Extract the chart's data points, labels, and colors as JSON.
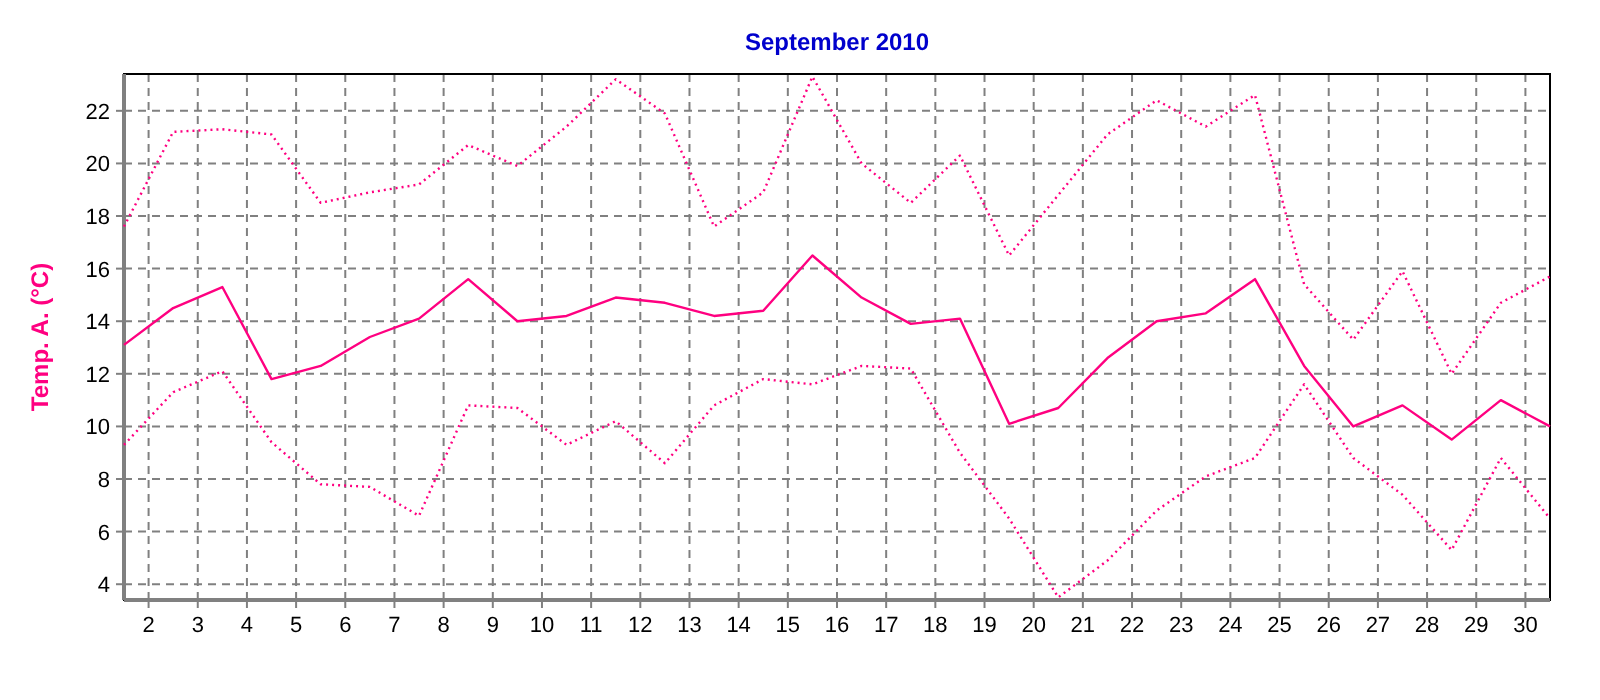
{
  "chart_data": {
    "type": "line",
    "title": "September 2010",
    "ylabel": "Temp. A. (°C)",
    "x": [
      1.5,
      2.5,
      3.5,
      4.5,
      5.5,
      6.5,
      7.5,
      8.5,
      9.5,
      10.5,
      11.5,
      12.5,
      13.5,
      14.5,
      15.5,
      16.5,
      17.5,
      18.5,
      19.5,
      20.5,
      21.5,
      22.5,
      23.5,
      24.5,
      25.5,
      26.5,
      27.5,
      28.5,
      29.5,
      30.5
    ],
    "xlim": [
      1.5,
      30.5
    ],
    "xticks": [
      2,
      3,
      4,
      5,
      6,
      7,
      8,
      9,
      10,
      11,
      12,
      13,
      14,
      15,
      16,
      17,
      18,
      19,
      20,
      21,
      22,
      23,
      24,
      25,
      26,
      27,
      28,
      29,
      30
    ],
    "ylim": [
      3.4,
      23.4
    ],
    "yticks": [
      4,
      6,
      8,
      10,
      12,
      14,
      16,
      18,
      20,
      22
    ],
    "grid": true,
    "series": [
      {
        "color": "#ff0080",
        "line_style": "dotted",
        "values": [
          17.6,
          21.2,
          21.3,
          21.1,
          18.5,
          18.9,
          19.2,
          20.7,
          19.9,
          21.4,
          23.2,
          21.9,
          17.6,
          18.9,
          23.3,
          20.0,
          18.5,
          20.3,
          16.5,
          18.8,
          21.1,
          22.4,
          21.4,
          22.6,
          15.4,
          13.3,
          15.9,
          12.0,
          14.7,
          15.7
        ]
      },
      {
        "color": "#ff0080",
        "line_style": "solid",
        "values": [
          13.1,
          14.5,
          15.3,
          11.8,
          12.3,
          13.4,
          14.1,
          15.6,
          14.0,
          14.2,
          14.9,
          14.7,
          14.2,
          14.4,
          16.5,
          14.9,
          13.9,
          14.1,
          10.1,
          10.7,
          12.6,
          14.0,
          14.3,
          15.6,
          12.3,
          10.0,
          10.8,
          9.5,
          11.0,
          10.0
        ]
      },
      {
        "color": "#ff0080",
        "line_style": "dotted",
        "values": [
          9.3,
          11.3,
          12.1,
          9.4,
          7.8,
          7.7,
          6.6,
          10.8,
          10.7,
          9.3,
          10.2,
          8.6,
          10.8,
          11.8,
          11.6,
          12.3,
          12.2,
          9.0,
          6.5,
          3.5,
          4.9,
          6.8,
          8.1,
          8.8,
          11.6,
          8.8,
          7.4,
          5.3,
          8.8,
          6.5
        ]
      }
    ]
  }
}
